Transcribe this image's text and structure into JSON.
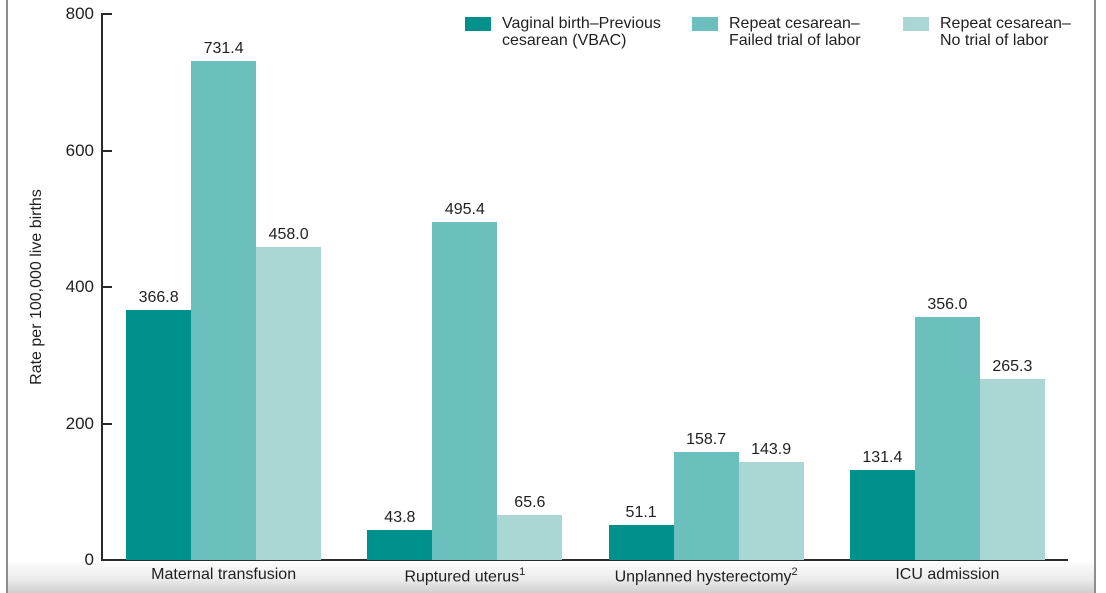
{
  "chart_data": {
    "type": "bar",
    "ylabel": "Rate per 100,000 live births",
    "ylim": [
      0,
      800
    ],
    "yticks": [
      0,
      200,
      400,
      600,
      800
    ],
    "grid": "off",
    "legend_position": "top",
    "value_labels": "above bars, one decimal place",
    "categories": [
      "Maternal transfusion",
      "Ruptured uterus",
      "Unplanned hysterectomy",
      "ICU admission"
    ],
    "category_footnote_markers": [
      "",
      "1",
      "2",
      ""
    ],
    "series": [
      {
        "name": "Vaginal birth–Previous cesarean (VBAC)",
        "color": "#00918C",
        "values": [
          366.8,
          43.8,
          51.1,
          131.4
        ]
      },
      {
        "name": "Repeat cesarean–Failed trial of labor",
        "color": "#6BBFBD",
        "values": [
          731.4,
          495.4,
          158.7,
          356.0
        ]
      },
      {
        "name": "Repeat cesarean–No trial of labor",
        "color": "#AAD7D4",
        "values": [
          458.0,
          65.6,
          143.9,
          265.3
        ]
      }
    ]
  },
  "legend": {
    "items": [
      {
        "line1": "Vaginal birth–Previous",
        "line2": "cesarean (VBAC)",
        "color": "#00918C"
      },
      {
        "line1": "Repeat cesarean–",
        "line2": "Failed trial of labor",
        "color": "#6BBFBD"
      },
      {
        "line1": "Repeat cesarean–",
        "line2": "No trial of labor",
        "color": "#AAD7D4"
      }
    ]
  },
  "colors": {
    "series_dark_teal": "#00918C",
    "series_medium_teal": "#6BBFBD",
    "series_light_teal": "#AAD7D4",
    "axis_and_text": "#1f1f1f",
    "frame_border": "#8e8e8e"
  }
}
